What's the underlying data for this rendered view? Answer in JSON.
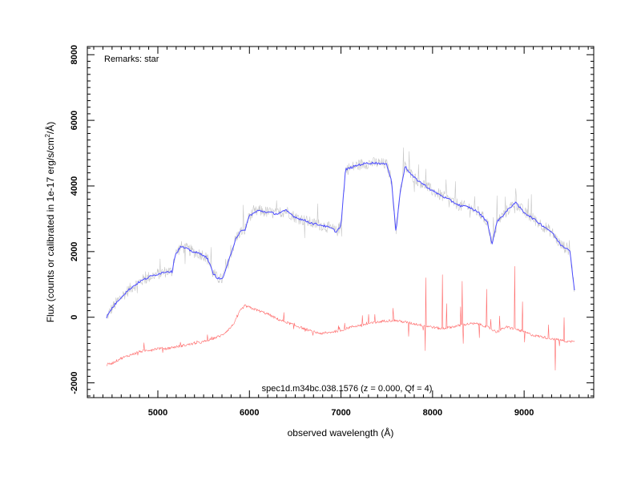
{
  "chart_data": {
    "type": "line",
    "remark": "Remarks: star",
    "caption": "spec1d.m34bc.038.1576 (z = 0.000, Qf = 4)",
    "xlabel": "observed wavelength (Å)",
    "ylabel_main": "Flux (counts or calibrated in 1e-17 erg/s/cm",
    "ylabel_sup": "2",
    "ylabel_tail": "/Å)",
    "xlim": [
      4230,
      9760
    ],
    "ylim": [
      -2450,
      8250
    ],
    "xticks": [
      5000,
      6000,
      7000,
      8000,
      9000
    ],
    "yticks": [
      -2000,
      0,
      2000,
      4000,
      6000,
      8000
    ],
    "colors": {
      "raw": "#c8c8c8",
      "smoothed": "#4b4bff",
      "error": "#ff6b6b",
      "axes": "#000000"
    },
    "series": [
      {
        "key": "raw",
        "x": [
          4440,
          4500,
          4600,
          4700,
          4800,
          4900,
          5000,
          5100,
          5160,
          5170,
          5200,
          5250,
          5300,
          5400,
          5500,
          5550,
          5600,
          5650,
          5700,
          5750,
          5800,
          5850,
          5900,
          5950,
          6000,
          6100,
          6200,
          6300,
          6400,
          6500,
          6600,
          6700,
          6800,
          6900,
          6950,
          7000,
          7050,
          7100,
          7200,
          7300,
          7400,
          7500,
          7550,
          7600,
          7650,
          7700,
          7750,
          7800,
          7900,
          8000,
          8100,
          8200,
          8300,
          8400,
          8500,
          8600,
          8650,
          8700,
          8800,
          8900,
          9000,
          9100,
          9200,
          9300,
          9400,
          9500,
          9550
        ],
        "y": [
          0,
          280,
          620,
          880,
          1080,
          1220,
          1320,
          1400,
          1380,
          1700,
          1950,
          2150,
          2100,
          1980,
          1900,
          1750,
          1350,
          1200,
          1150,
          1500,
          1950,
          2400,
          2600,
          2650,
          3100,
          3250,
          3200,
          3150,
          3250,
          3050,
          2950,
          2850,
          2800,
          2700,
          2600,
          2800,
          4500,
          4550,
          4650,
          4700,
          4700,
          4650,
          4200,
          2600,
          3900,
          4600,
          4400,
          4250,
          4050,
          3850,
          3700,
          3550,
          3400,
          3350,
          3200,
          2900,
          2200,
          2900,
          3200,
          3500,
          3200,
          3000,
          2800,
          2600,
          2200,
          2050,
          800
        ]
      },
      {
        "key": "smoothed",
        "x": [
          4440,
          4500,
          4600,
          4700,
          4800,
          4900,
          5000,
          5100,
          5160,
          5170,
          5200,
          5250,
          5300,
          5400,
          5500,
          5550,
          5600,
          5650,
          5700,
          5750,
          5800,
          5850,
          5900,
          5950,
          6000,
          6100,
          6200,
          6300,
          6400,
          6500,
          6600,
          6700,
          6800,
          6900,
          6950,
          7000,
          7050,
          7100,
          7200,
          7300,
          7400,
          7500,
          7550,
          7600,
          7650,
          7700,
          7750,
          7800,
          7900,
          8000,
          8100,
          8200,
          8300,
          8400,
          8500,
          8600,
          8650,
          8700,
          8800,
          8900,
          9000,
          9100,
          9200,
          9300,
          9400,
          9500,
          9550
        ],
        "y": [
          0,
          280,
          620,
          880,
          1080,
          1220,
          1320,
          1400,
          1380,
          1700,
          1950,
          2150,
          2100,
          1980,
          1900,
          1750,
          1350,
          1200,
          1150,
          1500,
          1950,
          2400,
          2600,
          2650,
          3100,
          3250,
          3200,
          3150,
          3250,
          3050,
          2950,
          2850,
          2800,
          2700,
          2600,
          2800,
          4500,
          4550,
          4650,
          4700,
          4700,
          4650,
          4200,
          2600,
          3900,
          4600,
          4400,
          4250,
          4050,
          3850,
          3700,
          3550,
          3400,
          3350,
          3200,
          2900,
          2200,
          2900,
          3200,
          3500,
          3200,
          3000,
          2800,
          2600,
          2200,
          2050,
          800
        ]
      },
      {
        "key": "error",
        "x": [
          4440,
          4500,
          4600,
          4700,
          4800,
          4900,
          5000,
          5100,
          5200,
          5300,
          5400,
          5500,
          5600,
          5700,
          5800,
          5850,
          5900,
          5950,
          6000,
          6100,
          6200,
          6300,
          6400,
          6500,
          6600,
          6700,
          6800,
          6900,
          7000,
          7100,
          7200,
          7300,
          7400,
          7500,
          7600,
          7700,
          7800,
          7900,
          8000,
          8100,
          8200,
          8300,
          8400,
          8500,
          8600,
          8700,
          8800,
          8900,
          9000,
          9100,
          9200,
          9300,
          9400,
          9500,
          9550
        ],
        "y": [
          -1450,
          -1400,
          -1250,
          -1150,
          -1050,
          -1000,
          -950,
          -950,
          -900,
          -850,
          -800,
          -750,
          -650,
          -550,
          -300,
          -100,
          200,
          350,
          300,
          200,
          100,
          -50,
          -150,
          -250,
          -350,
          -450,
          -500,
          -450,
          -400,
          -300,
          -250,
          -200,
          -150,
          -100,
          -100,
          -150,
          -200,
          -250,
          -300,
          -350,
          -300,
          -250,
          -200,
          -200,
          -300,
          -450,
          -300,
          -350,
          -450,
          -550,
          -600,
          -650,
          -700,
          -750,
          -700
        ]
      }
    ]
  }
}
